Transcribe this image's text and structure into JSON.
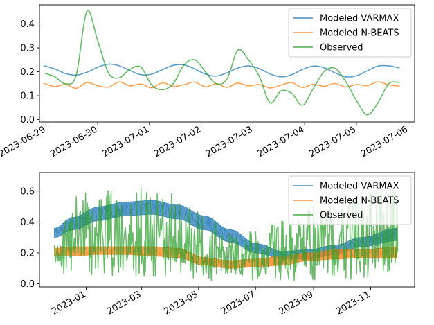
{
  "chart_data": [
    {
      "type": "line",
      "title": "",
      "xlabel": "",
      "ylabel": "",
      "x_tick_labels": [
        "2023-06-29",
        "2023-06-30",
        "2023-07-01",
        "2023-07-02",
        "2023-07-03",
        "2023-07-04",
        "2023-07-05",
        "2023-07-06"
      ],
      "x_range": [
        "2023-06-28T21:00",
        "2023-07-06T03:00"
      ],
      "ylim": [
        -0.01,
        0.48
      ],
      "y_ticks": [
        0.0,
        0.1,
        0.2,
        0.3,
        0.4
      ],
      "y_tick_labels": [
        "0.0",
        "0.1",
        "0.2",
        "0.3",
        "0.4"
      ],
      "grid": false,
      "legend_position": "top-right",
      "series": [
        {
          "name": "Modeled VARMAX",
          "color": "#1f77b4",
          "x": [
            "2023-06-28T23:00",
            "2023-06-29T04:00",
            "2023-06-29T09:00",
            "2023-06-29T14:00",
            "2023-06-29T19:00",
            "2023-06-30T00:00",
            "2023-06-30T05:00",
            "2023-06-30T10:00",
            "2023-06-30T15:00",
            "2023-06-30T20:00",
            "2023-07-01T01:00",
            "2023-07-01T06:00",
            "2023-07-01T11:00",
            "2023-07-01T16:00",
            "2023-07-01T21:00",
            "2023-07-02T02:00",
            "2023-07-02T07:00",
            "2023-07-02T12:00",
            "2023-07-02T17:00",
            "2023-07-02T22:00",
            "2023-07-03T03:00",
            "2023-07-03T08:00",
            "2023-07-03T13:00",
            "2023-07-03T18:00",
            "2023-07-03T23:00",
            "2023-07-04T04:00",
            "2023-07-04T09:00",
            "2023-07-04T14:00",
            "2023-07-04T19:00",
            "2023-07-05T00:00",
            "2023-07-05T05:00",
            "2023-07-05T10:00",
            "2023-07-05T15:00",
            "2023-07-05T20:00"
          ],
          "y": [
            0.226,
            0.212,
            0.193,
            0.186,
            0.198,
            0.219,
            0.232,
            0.225,
            0.205,
            0.188,
            0.19,
            0.209,
            0.227,
            0.229,
            0.212,
            0.19,
            0.182,
            0.196,
            0.216,
            0.225,
            0.213,
            0.191,
            0.179,
            0.188,
            0.21,
            0.224,
            0.217,
            0.196,
            0.179,
            0.183,
            0.204,
            0.224,
            0.225,
            0.216
          ]
        },
        {
          "name": "Modeled N-BEATS",
          "color": "#ff7f0e",
          "x": [
            "2023-06-28T23:00",
            "2023-06-29T04:00",
            "2023-06-29T09:00",
            "2023-06-29T14:00",
            "2023-06-29T19:00",
            "2023-06-30T00:00",
            "2023-06-30T05:00",
            "2023-06-30T10:00",
            "2023-06-30T15:00",
            "2023-06-30T20:00",
            "2023-07-01T01:00",
            "2023-07-01T06:00",
            "2023-07-01T11:00",
            "2023-07-01T16:00",
            "2023-07-01T21:00",
            "2023-07-02T02:00",
            "2023-07-02T07:00",
            "2023-07-02T12:00",
            "2023-07-02T17:00",
            "2023-07-02T22:00",
            "2023-07-03T03:00",
            "2023-07-03T08:00",
            "2023-07-03T13:00",
            "2023-07-03T18:00",
            "2023-07-03T23:00",
            "2023-07-04T04:00",
            "2023-07-04T09:00",
            "2023-07-04T14:00",
            "2023-07-04T19:00",
            "2023-07-05T00:00",
            "2023-07-05T05:00",
            "2023-07-05T10:00",
            "2023-07-05T15:00",
            "2023-07-05T20:00"
          ],
          "y": [
            0.152,
            0.138,
            0.147,
            0.131,
            0.155,
            0.142,
            0.136,
            0.158,
            0.141,
            0.149,
            0.133,
            0.154,
            0.139,
            0.146,
            0.157,
            0.137,
            0.15,
            0.135,
            0.153,
            0.141,
            0.147,
            0.132,
            0.144,
            0.155,
            0.134,
            0.148,
            0.139,
            0.151,
            0.136,
            0.147,
            0.142,
            0.158,
            0.145,
            0.14
          ]
        },
        {
          "name": "Observed",
          "color": "#2ca02c",
          "x": [
            "2023-06-28T23:00",
            "2023-06-29T04:00",
            "2023-06-29T09:00",
            "2023-06-29T14:00",
            "2023-06-29T19:00",
            "2023-06-30T00:00",
            "2023-06-30T05:00",
            "2023-06-30T10:00",
            "2023-06-30T15:00",
            "2023-06-30T20:00",
            "2023-07-01T01:00",
            "2023-07-01T06:00",
            "2023-07-01T11:00",
            "2023-07-01T16:00",
            "2023-07-01T21:00",
            "2023-07-02T02:00",
            "2023-07-02T07:00",
            "2023-07-02T12:00",
            "2023-07-02T17:00",
            "2023-07-02T22:00",
            "2023-07-03T03:00",
            "2023-07-03T08:00",
            "2023-07-03T13:00",
            "2023-07-03T18:00",
            "2023-07-03T23:00",
            "2023-07-04T04:00",
            "2023-07-04T09:00",
            "2023-07-04T14:00",
            "2023-07-04T19:00",
            "2023-07-05T00:00",
            "2023-07-05T05:00",
            "2023-07-05T10:00",
            "2023-07-05T15:00",
            "2023-07-05T20:00"
          ],
          "y": [
            0.195,
            0.18,
            0.15,
            0.185,
            0.452,
            0.33,
            0.195,
            0.175,
            0.21,
            0.22,
            0.145,
            0.125,
            0.15,
            0.228,
            0.25,
            0.2,
            0.15,
            0.17,
            0.29,
            0.25,
            0.18,
            0.07,
            0.12,
            0.11,
            0.06,
            0.13,
            0.2,
            0.215,
            0.16,
            0.08,
            0.02,
            0.07,
            0.15,
            0.155
          ]
        }
      ]
    },
    {
      "type": "line",
      "title": "",
      "xlabel": "",
      "ylabel": "",
      "x_tick_labels": [
        "2023-01",
        "2023-03",
        "2023-05",
        "2023-07",
        "2023-09",
        "2023-11"
      ],
      "x_range": [
        "2022-11-12",
        "2023-12-18"
      ],
      "ylim": [
        -0.02,
        0.72
      ],
      "y_ticks": [
        0.0,
        0.2,
        0.4,
        0.6
      ],
      "y_tick_labels": [
        "0.0",
        "0.2",
        "0.4",
        "0.6"
      ],
      "grid": false,
      "legend_position": "top-right",
      "series": [
        {
          "name": "Modeled VARMAX",
          "color": "#1f77b4",
          "x": [
            "2022-11-28",
            "2022-12-18",
            "2023-01-15",
            "2023-02-12",
            "2023-03-12",
            "2023-04-09",
            "2023-05-07",
            "2023-06-04",
            "2023-07-02",
            "2023-07-30",
            "2023-08-27",
            "2023-09-24",
            "2023-10-22",
            "2023-11-30"
          ],
          "y_low": [
            0.3,
            0.35,
            0.41,
            0.44,
            0.45,
            0.42,
            0.35,
            0.27,
            0.2,
            0.16,
            0.16,
            0.19,
            0.24,
            0.28
          ],
          "y_high": [
            0.36,
            0.43,
            0.5,
            0.53,
            0.54,
            0.51,
            0.44,
            0.35,
            0.26,
            0.21,
            0.22,
            0.25,
            0.3,
            0.36
          ]
        },
        {
          "name": "Modeled N-BEATS",
          "color": "#ff7f0e",
          "x": [
            "2022-11-28",
            "2022-12-18",
            "2023-01-15",
            "2023-02-12",
            "2023-03-12",
            "2023-04-09",
            "2023-05-07",
            "2023-06-04",
            "2023-07-02",
            "2023-07-30",
            "2023-08-27",
            "2023-09-24",
            "2023-10-22",
            "2023-11-30"
          ],
          "y_low": [
            0.18,
            0.18,
            0.19,
            0.19,
            0.18,
            0.17,
            0.12,
            0.1,
            0.11,
            0.12,
            0.15,
            0.16,
            0.17,
            0.17
          ],
          "y_high": [
            0.23,
            0.24,
            0.24,
            0.24,
            0.24,
            0.23,
            0.17,
            0.15,
            0.16,
            0.18,
            0.2,
            0.22,
            0.22,
            0.24
          ]
        },
        {
          "name": "Observed",
          "color": "#2ca02c",
          "x": [
            "2022-11-28",
            "2022-12-18",
            "2023-01-15",
            "2023-02-12",
            "2023-03-12",
            "2023-04-09",
            "2023-05-07",
            "2023-06-04",
            "2023-07-02",
            "2023-07-30",
            "2023-08-27",
            "2023-09-24",
            "2023-10-22",
            "2023-11-30"
          ],
          "y_low": [
            0.08,
            0.05,
            0.04,
            0.04,
            0.04,
            0.05,
            0.02,
            0.01,
            0.02,
            0.02,
            0.02,
            0.03,
            0.03,
            0.05
          ],
          "y_high": [
            0.25,
            0.62,
            0.64,
            0.58,
            0.68,
            0.57,
            0.46,
            0.36,
            0.35,
            0.44,
            0.53,
            0.51,
            0.58,
            0.66
          ],
          "typical": [
            0.18,
            0.34,
            0.33,
            0.3,
            0.34,
            0.28,
            0.2,
            0.15,
            0.17,
            0.2,
            0.25,
            0.26,
            0.28,
            0.3
          ]
        }
      ]
    }
  ]
}
